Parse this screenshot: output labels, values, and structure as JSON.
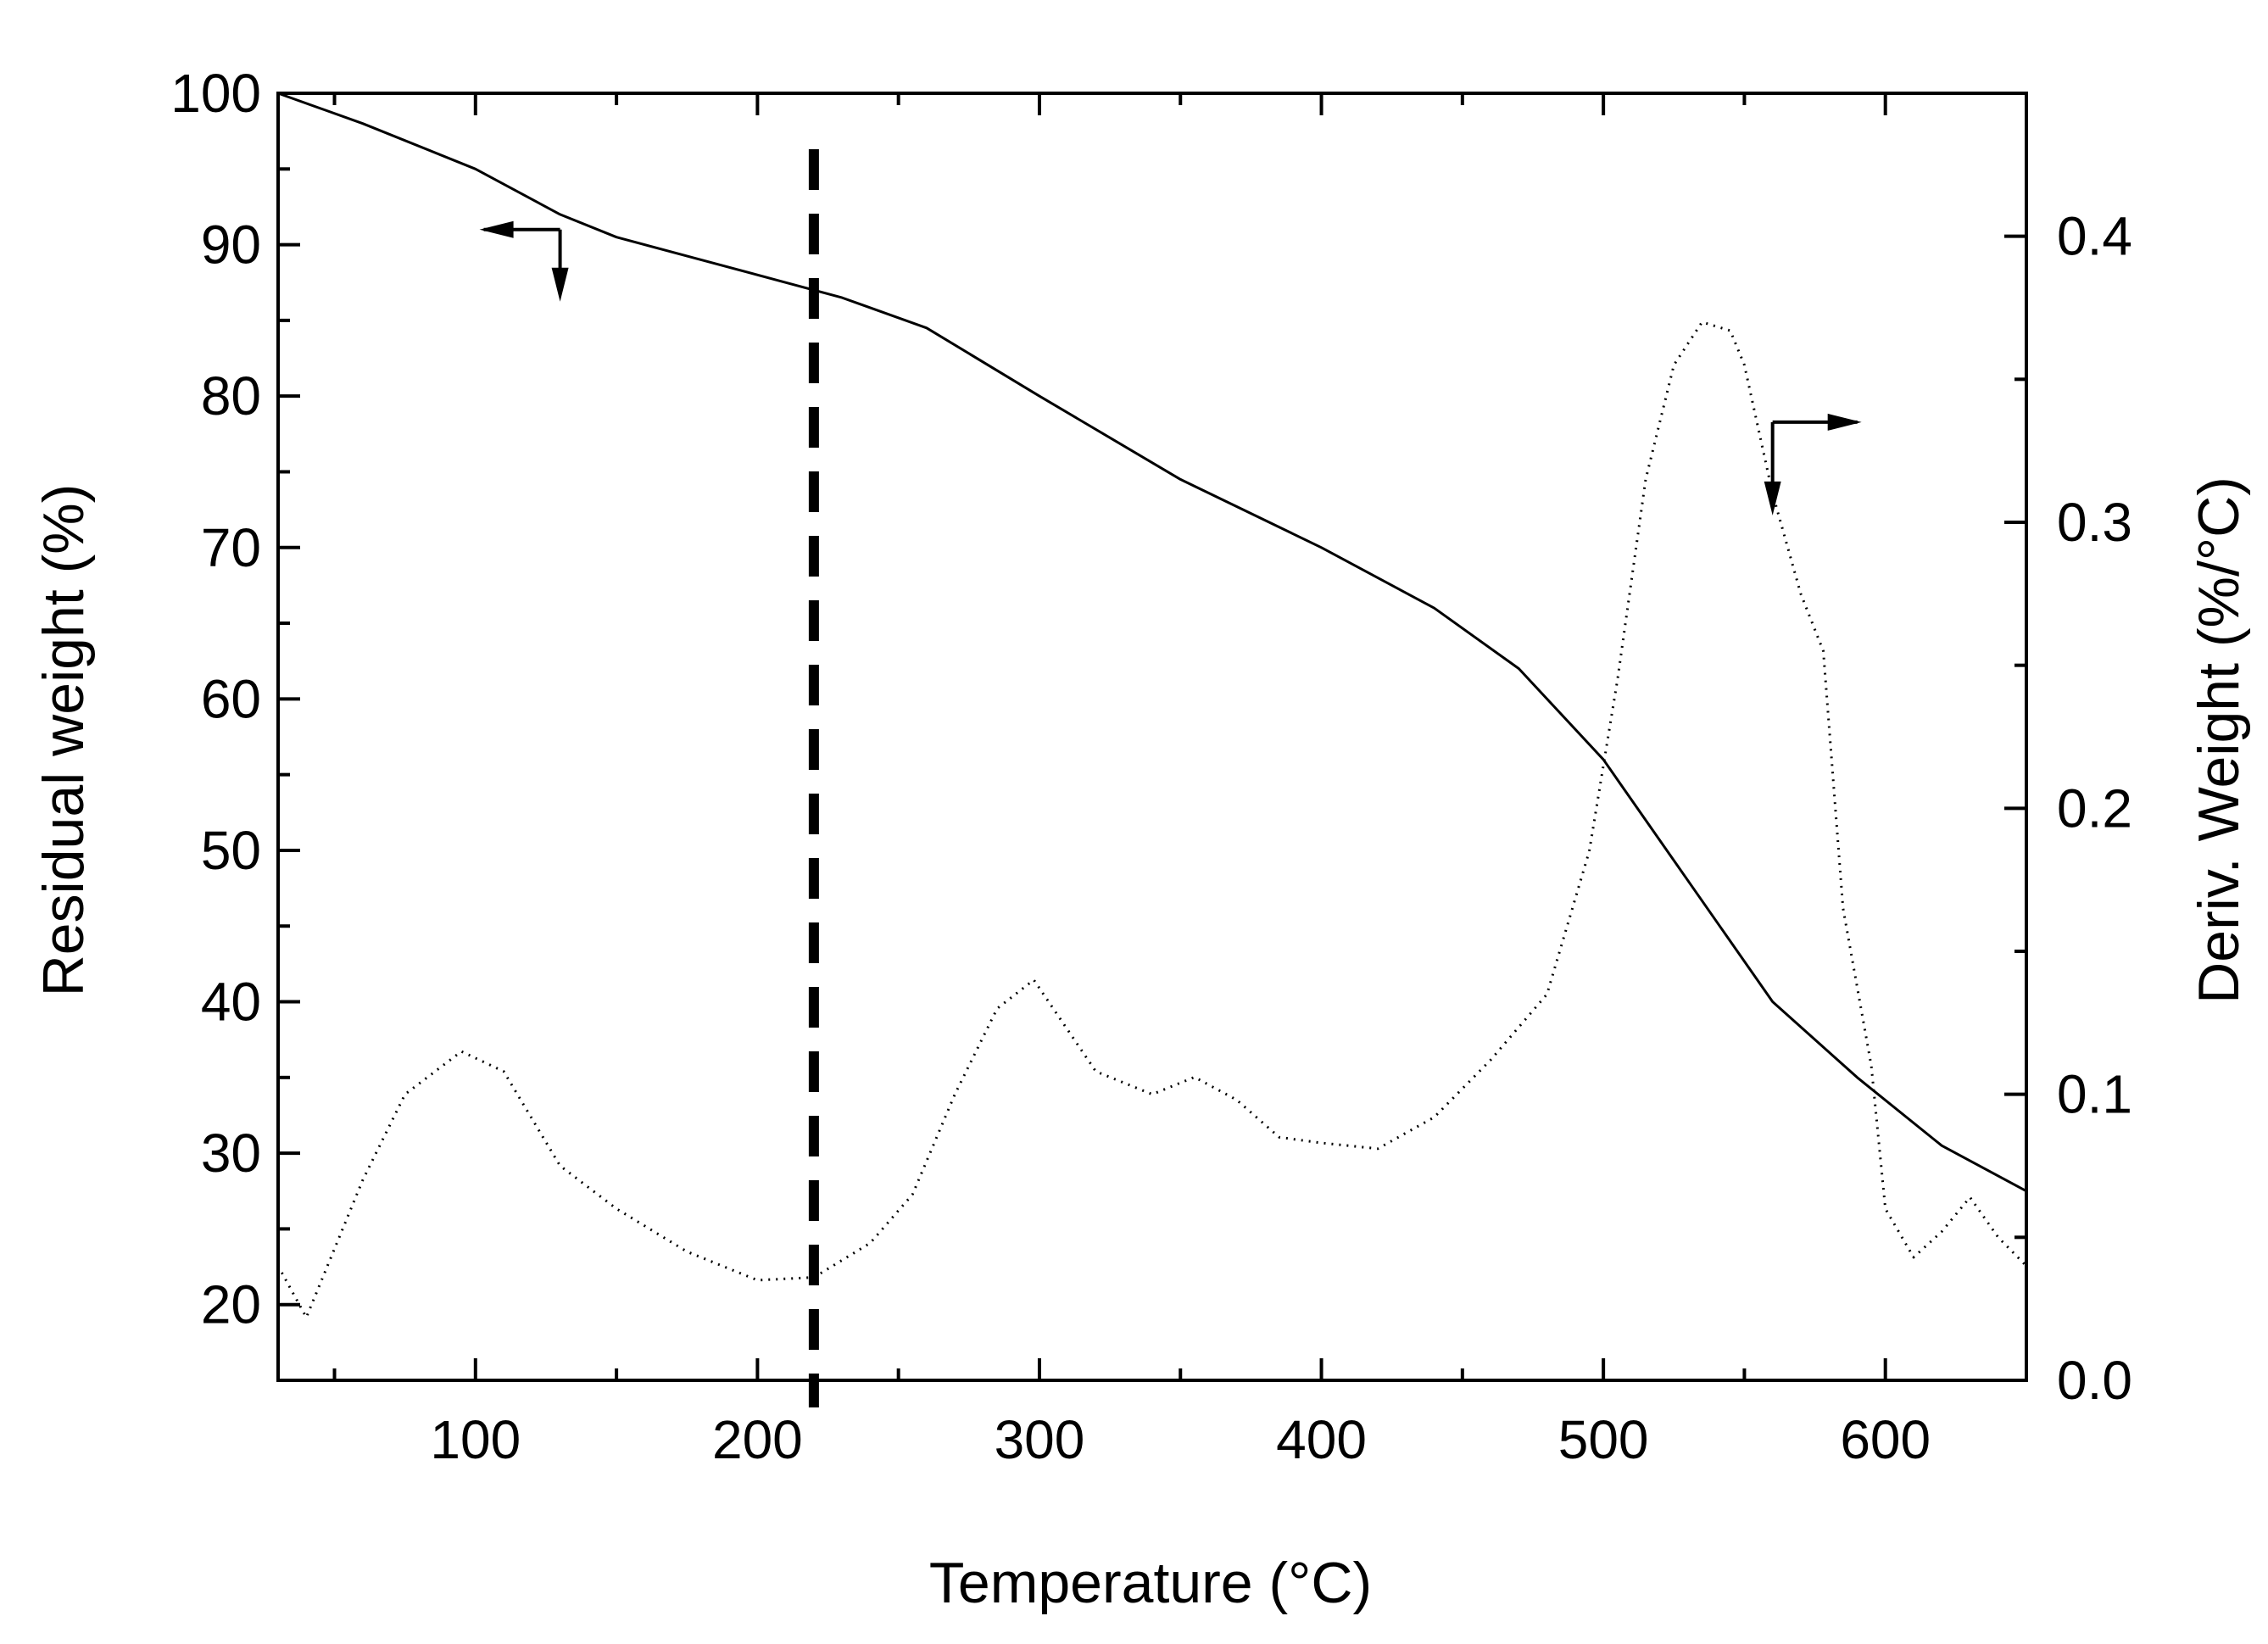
{
  "chart_data": {
    "type": "line",
    "title": "",
    "xlabel": "Temperature (°C)",
    "ylabel_left": "Residual weight (%)",
    "ylabel_right": "Deriv. Weight (%/°C)",
    "xlim": [
      30,
      650
    ],
    "ylim_left": [
      15,
      100
    ],
    "ylim_right": [
      0.0,
      0.45
    ],
    "x_ticks": [
      100,
      200,
      300,
      400,
      500,
      600
    ],
    "y_left_ticks": [
      20,
      30,
      40,
      50,
      60,
      70,
      80,
      90,
      100
    ],
    "y_right_ticks": [
      "0.0",
      "0.1",
      "0.2",
      "0.3",
      "0.4"
    ],
    "vertical_marker_x": 220,
    "series": [
      {
        "name": "Residual weight",
        "axis": "left",
        "style": "solid",
        "x": [
          30,
          60,
          100,
          130,
          150,
          180,
          210,
          230,
          260,
          300,
          350,
          400,
          440,
          470,
          500,
          530,
          560,
          590,
          620,
          650
        ],
        "y": [
          100,
          98,
          95,
          92,
          90.5,
          89,
          87.5,
          86.5,
          84.5,
          80,
          74.5,
          70,
          66,
          62,
          56,
          48,
          40,
          35,
          30.5,
          27.5
        ]
      },
      {
        "name": "Deriv. Weight",
        "axis": "right",
        "style": "dotted",
        "x": [
          30,
          40,
          60,
          75,
          95,
          110,
          130,
          150,
          175,
          200,
          220,
          240,
          255,
          270,
          285,
          298,
          320,
          340,
          355,
          370,
          385,
          400,
          420,
          440,
          460,
          480,
          495,
          505,
          515,
          525,
          535,
          545,
          550,
          560,
          570,
          578,
          585,
          595,
          600,
          610,
          620,
          630,
          640,
          650
        ],
        "y": [
          0.04,
          0.022,
          0.07,
          0.1,
          0.115,
          0.108,
          0.075,
          0.06,
          0.045,
          0.035,
          0.036,
          0.048,
          0.065,
          0.1,
          0.13,
          0.14,
          0.108,
          0.1,
          0.106,
          0.098,
          0.085,
          0.083,
          0.081,
          0.092,
          0.112,
          0.135,
          0.185,
          0.245,
          0.315,
          0.355,
          0.37,
          0.367,
          0.355,
          0.31,
          0.275,
          0.255,
          0.165,
          0.11,
          0.06,
          0.043,
          0.052,
          0.064,
          0.05,
          0.04
        ]
      }
    ],
    "annotations": [
      {
        "type": "arrow-left",
        "points_to_axis": "left",
        "near_x": 130,
        "near_y_left": 91
      },
      {
        "type": "arrow-right",
        "points_to_axis": "right",
        "near_x": 560,
        "near_y_right": 0.335
      }
    ]
  }
}
